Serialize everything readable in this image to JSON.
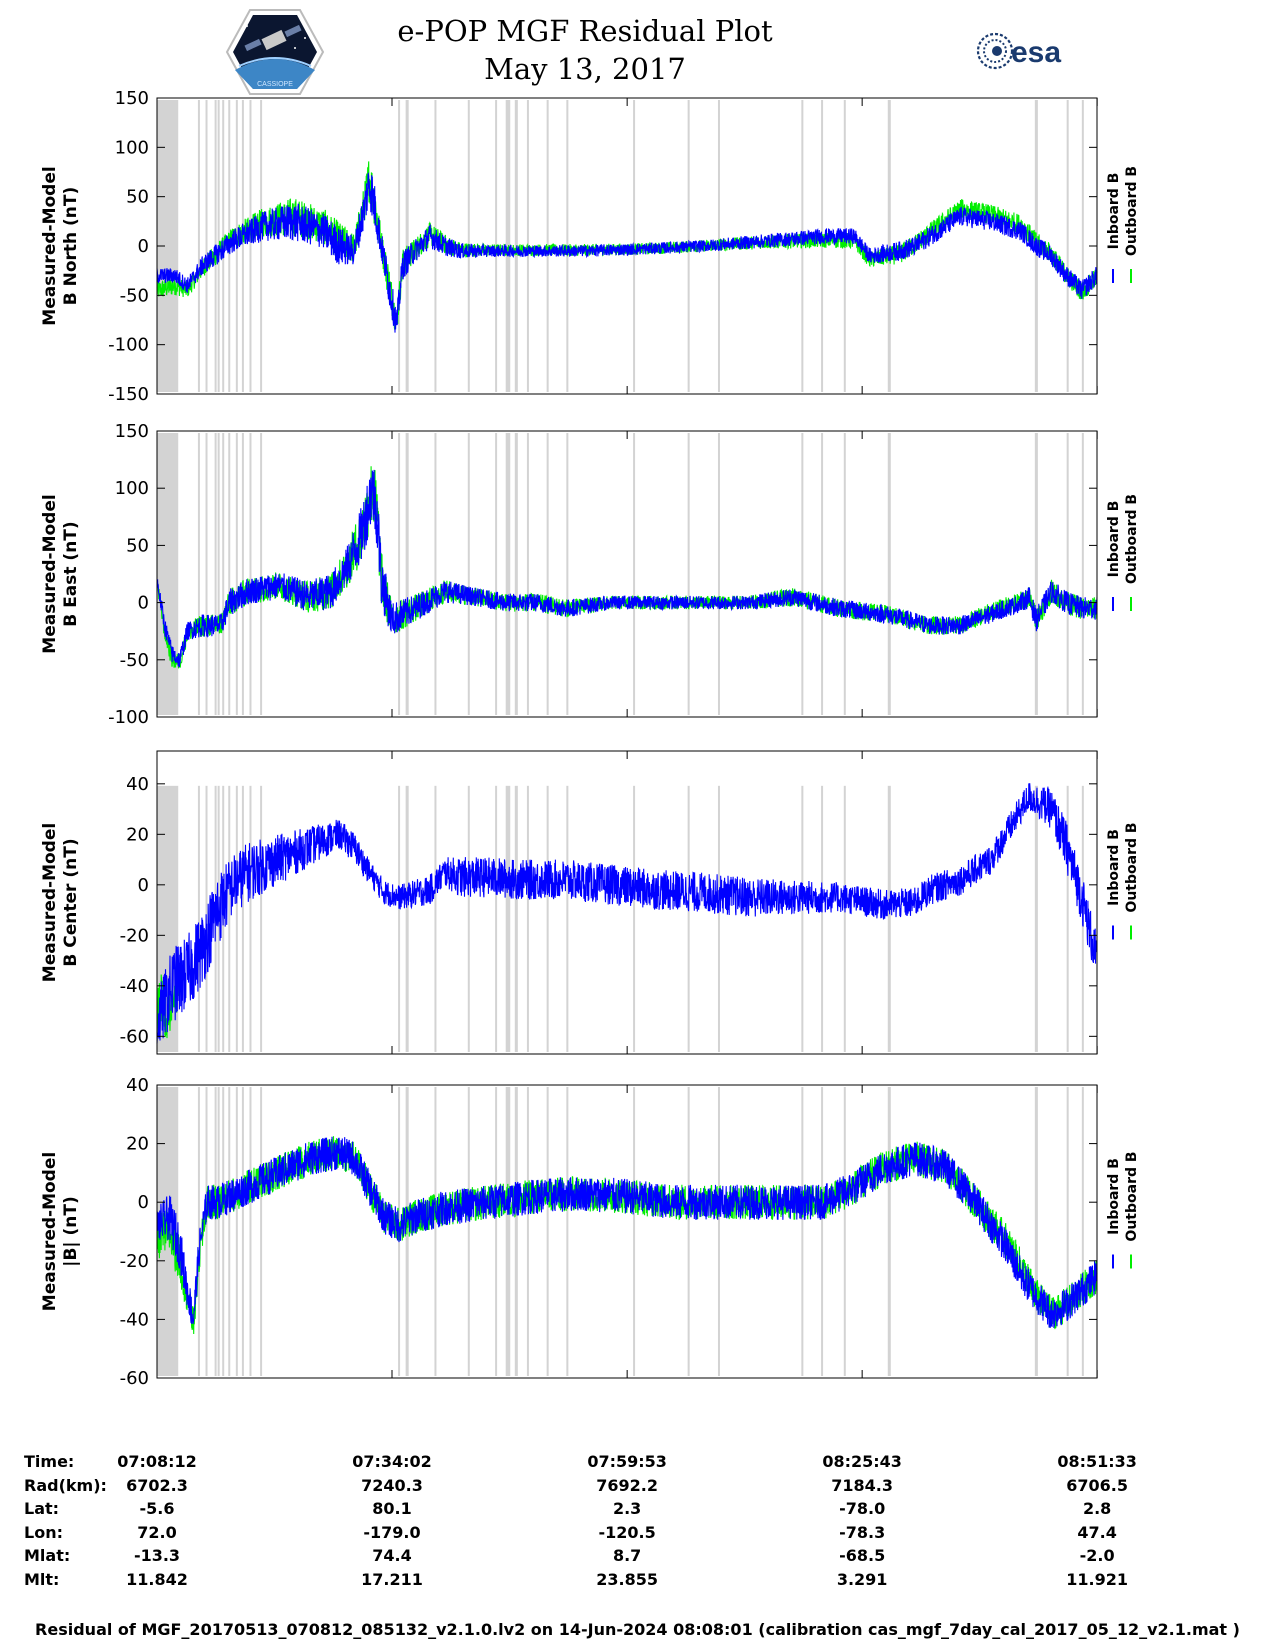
{
  "header": {
    "title_line1": "e-POP MGF Residual Plot",
    "title_line2": "May 13, 2017",
    "logo_left": "CASSIOPE",
    "logo_right": "esa"
  },
  "colors": {
    "inboard": "#0000ff",
    "outboard": "#00ee00",
    "gap": "#d3d3d3"
  },
  "chart_data": [
    {
      "type": "line",
      "ylabel": "Measured-Model\nB North (nT)",
      "ylabel_lines": [
        "Measured-Model",
        "B North (nT)"
      ],
      "ylim": [
        -150,
        150
      ],
      "yticks": [
        150,
        100,
        50,
        0,
        -50,
        -100,
        -150
      ],
      "xlim": [
        0,
        6200
      ],
      "legend": [
        "Inboard B",
        "Outboard B"
      ],
      "series": [
        {
          "name": "Inboard B",
          "key": "inboard",
          "x": [
            0,
            120,
            200,
            300,
            500,
            700,
            900,
            1100,
            1200,
            1300,
            1370,
            1400,
            1430,
            1480,
            1530,
            1580,
            1620,
            1700,
            1800,
            1900,
            2000,
            2200,
            2400,
            2800,
            3200,
            3600,
            4000,
            4400,
            4600,
            4700,
            4900,
            5000,
            5100,
            5300,
            5500,
            5700,
            5800,
            5900,
            6000,
            6100,
            6200
          ],
          "y": [
            -30,
            -30,
            -40,
            -20,
            5,
            20,
            25,
            15,
            0,
            -5,
            40,
            65,
            45,
            0,
            -40,
            -80,
            -20,
            -5,
            10,
            0,
            -5,
            -5,
            -5,
            -5,
            -3,
            0,
            5,
            10,
            10,
            -10,
            -5,
            0,
            10,
            30,
            25,
            15,
            0,
            -10,
            -30,
            -45,
            -30
          ],
          "noise": [
            8,
            8,
            8,
            10,
            12,
            15,
            20,
            18,
            20,
            15,
            20,
            25,
            25,
            15,
            20,
            15,
            15,
            12,
            12,
            10,
            8,
            6,
            6,
            6,
            6,
            6,
            7,
            8,
            8,
            8,
            10,
            10,
            10,
            10,
            10,
            10,
            10,
            10,
            10,
            10,
            10
          ]
        },
        {
          "name": "Outboard B",
          "key": "outboard",
          "x": [
            0,
            120,
            200,
            300,
            500,
            700,
            900,
            1100,
            1200,
            1300,
            1370,
            1400,
            1430,
            1480,
            1530,
            1580,
            1620,
            1700,
            1800,
            1900,
            2000,
            2200,
            2400,
            2800,
            3200,
            3600,
            4000,
            4400,
            4600,
            4700,
            4900,
            5000,
            5100,
            5300,
            5500,
            5700,
            5800,
            5900,
            6000,
            6100,
            6200
          ],
          "y": [
            -45,
            -40,
            -45,
            -22,
            8,
            24,
            30,
            20,
            5,
            -2,
            45,
            70,
            48,
            2,
            -38,
            -78,
            -18,
            -4,
            12,
            2,
            -4,
            -4,
            -4,
            -4,
            -3,
            0,
            4,
            6,
            5,
            -14,
            -8,
            2,
            14,
            38,
            32,
            22,
            4,
            -8,
            -30,
            -46,
            -32
          ],
          "noise": [
            10,
            10,
            8,
            10,
            12,
            15,
            20,
            18,
            20,
            15,
            20,
            25,
            25,
            15,
            20,
            15,
            15,
            12,
            12,
            10,
            8,
            6,
            6,
            6,
            6,
            6,
            7,
            8,
            8,
            8,
            10,
            10,
            10,
            10,
            10,
            10,
            10,
            10,
            10,
            10,
            10
          ]
        }
      ]
    },
    {
      "type": "line",
      "ylabel": "Measured-Model\nB East (nT)",
      "ylabel_lines": [
        "Measured-Model",
        "B East (nT)"
      ],
      "ylim": [
        -100,
        150
      ],
      "yticks": [
        150,
        100,
        50,
        0,
        -50,
        -100
      ],
      "xlim": [
        0,
        6200
      ],
      "legend": [
        "Inboard B",
        "Outboard B"
      ],
      "series": [
        {
          "name": "Inboard B",
          "key": "inboard",
          "x": [
            0,
            50,
            100,
            150,
            200,
            300,
            420,
            480,
            600,
            800,
            1000,
            1150,
            1250,
            1350,
            1420,
            1450,
            1480,
            1550,
            1700,
            1900,
            2100,
            2300,
            2500,
            2700,
            3000,
            3300,
            3600,
            3900,
            4200,
            4500,
            4800,
            5100,
            5300,
            5500,
            5700,
            5750,
            5800,
            5900,
            6000,
            6100,
            6200
          ],
          "y": [
            20,
            -20,
            -45,
            -50,
            -25,
            -20,
            -20,
            0,
            10,
            15,
            5,
            10,
            30,
            60,
            100,
            80,
            20,
            -15,
            -5,
            10,
            5,
            0,
            0,
            -5,
            0,
            0,
            0,
            0,
            5,
            -5,
            -10,
            -20,
            -20,
            -10,
            0,
            5,
            -15,
            10,
            0,
            -5,
            -5
          ],
          "noise": [
            6,
            8,
            8,
            8,
            8,
            10,
            10,
            12,
            12,
            12,
            14,
            16,
            18,
            25,
            30,
            30,
            25,
            15,
            12,
            10,
            8,
            8,
            8,
            8,
            6,
            6,
            6,
            6,
            8,
            8,
            8,
            8,
            8,
            8,
            8,
            10,
            10,
            10,
            10,
            10,
            10
          ]
        },
        {
          "name": "Outboard B",
          "key": "outboard",
          "x": [
            0,
            50,
            100,
            150,
            200,
            300,
            420,
            480,
            600,
            800,
            1000,
            1150,
            1250,
            1350,
            1420,
            1450,
            1480,
            1550,
            1700,
            1900,
            2100,
            2300,
            2500,
            2700,
            3000,
            3300,
            3600,
            3900,
            4200,
            4500,
            4800,
            5100,
            5300,
            5500,
            5700,
            5750,
            5800,
            5900,
            6000,
            6100,
            6200
          ],
          "y": [
            18,
            -25,
            -50,
            -52,
            -26,
            -20,
            -20,
            0,
            10,
            15,
            5,
            10,
            30,
            60,
            100,
            80,
            20,
            -15,
            -5,
            10,
            5,
            0,
            0,
            -5,
            0,
            0,
            0,
            0,
            5,
            -5,
            -10,
            -20,
            -20,
            -8,
            2,
            5,
            -15,
            10,
            0,
            -5,
            -5
          ],
          "noise": [
            6,
            8,
            8,
            8,
            8,
            10,
            10,
            12,
            12,
            12,
            14,
            16,
            18,
            25,
            30,
            30,
            25,
            15,
            12,
            10,
            8,
            8,
            8,
            8,
            6,
            6,
            6,
            6,
            8,
            8,
            8,
            8,
            8,
            8,
            8,
            10,
            10,
            10,
            10,
            10,
            10
          ]
        }
      ]
    },
    {
      "type": "line",
      "ylabel": "Measured-Model\nB Center (nT)",
      "ylabel_lines": [
        "Measured-Model",
        "B Center (nT)"
      ],
      "ylim": [
        -67,
        53
      ],
      "yticks": [
        40,
        20,
        0,
        -20,
        -40,
        -60
      ],
      "xlim": [
        0,
        6200
      ],
      "legend": [
        "Inboard B",
        "Outboard B"
      ],
      "series": [
        {
          "name": "Inboard B",
          "key": "inboard",
          "x": [
            0,
            100,
            200,
            300,
            400,
            500,
            600,
            800,
            1000,
            1200,
            1300,
            1400,
            1500,
            1600,
            1800,
            1900,
            2000,
            2200,
            2400,
            2700,
            3000,
            3300,
            3600,
            3900,
            4200,
            4500,
            4800,
            5000,
            5100,
            5300,
            5500,
            5650,
            5750,
            5900,
            6000,
            6100,
            6200
          ],
          "y": [
            -55,
            -40,
            -35,
            -25,
            -10,
            0,
            5,
            10,
            15,
            20,
            15,
            5,
            -3,
            -5,
            -2,
            5,
            3,
            3,
            2,
            2,
            0,
            -2,
            -3,
            -5,
            -5,
            -5,
            -8,
            -7,
            -2,
            2,
            10,
            25,
            35,
            30,
            15,
            -5,
            -30
          ],
          "noise": [
            12,
            15,
            15,
            15,
            15,
            12,
            12,
            10,
            8,
            6,
            6,
            5,
            5,
            5,
            6,
            6,
            8,
            8,
            8,
            8,
            8,
            8,
            8,
            8,
            7,
            6,
            6,
            6,
            6,
            6,
            6,
            6,
            6,
            8,
            10,
            10,
            10
          ]
        },
        {
          "name": "Outboard B",
          "key": "outboard",
          "x": [
            0,
            30,
            60,
            100,
            150
          ],
          "y": [
            -50,
            -45,
            -55,
            -45,
            -40
          ],
          "noise": [
            10,
            10,
            10,
            10,
            10
          ]
        }
      ]
    },
    {
      "type": "line",
      "ylabel": "Measured-Model\n|B| (nT)",
      "ylabel_lines": [
        "Measured-Model",
        "|B| (nT)"
      ],
      "ylim": [
        -60,
        40
      ],
      "yticks": [
        40,
        20,
        0,
        -20,
        -40,
        -60
      ],
      "xlim": [
        0,
        6200
      ],
      "legend": [
        "Inboard B",
        "Outboard B"
      ],
      "series": [
        {
          "name": "Inboard B",
          "key": "inboard",
          "x": [
            0,
            80,
            150,
            200,
            240,
            280,
            330,
            400,
            600,
            800,
            1000,
            1200,
            1300,
            1400,
            1500,
            1600,
            1700,
            1900,
            2200,
            2500,
            2800,
            3100,
            3400,
            3700,
            4000,
            4200,
            4400,
            4600,
            4800,
            5000,
            5200,
            5400,
            5600,
            5700,
            5800,
            5900,
            6000,
            6100,
            6200
          ],
          "y": [
            -8,
            -5,
            -15,
            -30,
            -40,
            -15,
            0,
            0,
            5,
            10,
            15,
            17,
            15,
            5,
            -5,
            -8,
            -5,
            -2,
            0,
            2,
            3,
            2,
            0,
            0,
            0,
            0,
            0,
            5,
            12,
            15,
            12,
            0,
            -15,
            -25,
            -32,
            -38,
            -35,
            -30,
            -25
          ],
          "noise": [
            6,
            8,
            8,
            6,
            6,
            6,
            6,
            6,
            6,
            6,
            6,
            6,
            6,
            6,
            6,
            6,
            6,
            6,
            6,
            6,
            6,
            6,
            6,
            6,
            6,
            6,
            6,
            6,
            6,
            6,
            6,
            6,
            6,
            6,
            6,
            6,
            6,
            6,
            6
          ]
        },
        {
          "name": "Outboard B",
          "key": "outboard",
          "x": [
            0,
            80,
            150,
            200,
            240,
            280,
            330,
            400,
            600,
            800,
            1000,
            1200,
            1300,
            1400,
            1500,
            1600,
            1700,
            1900,
            2200,
            2500,
            2800,
            3100,
            3400,
            3700,
            4000,
            4200,
            4400,
            4600,
            4800,
            5000,
            5200,
            5400,
            5600,
            5700,
            5800,
            5900,
            6000,
            6100,
            6200
          ],
          "y": [
            -12,
            -10,
            -20,
            -32,
            -42,
            -18,
            0,
            0,
            5,
            10,
            15,
            17,
            15,
            5,
            -5,
            -8,
            -5,
            -2,
            0,
            2,
            3,
            2,
            0,
            0,
            0,
            0,
            0,
            5,
            12,
            15,
            12,
            0,
            -13,
            -22,
            -32,
            -38,
            -35,
            -30,
            -25
          ],
          "noise": [
            8,
            8,
            8,
            6,
            6,
            6,
            6,
            6,
            6,
            6,
            6,
            6,
            6,
            6,
            6,
            6,
            6,
            6,
            6,
            6,
            6,
            6,
            6,
            6,
            6,
            6,
            6,
            6,
            6,
            6,
            6,
            6,
            6,
            6,
            6,
            6,
            6,
            6,
            6
          ]
        }
      ]
    }
  ],
  "data_gaps": [
    [
      0,
      140
    ],
    [
      270,
      280
    ],
    [
      320,
      330
    ],
    [
      380,
      392
    ],
    [
      400,
      410
    ],
    [
      430,
      436
    ],
    [
      470,
      478
    ],
    [
      520,
      528
    ],
    [
      560,
      572
    ],
    [
      610,
      620
    ],
    [
      680,
      686
    ],
    [
      1590,
      1600
    ],
    [
      1640,
      1660
    ],
    [
      1830,
      1840
    ],
    [
      2050,
      2060
    ],
    [
      2230,
      2240
    ],
    [
      2300,
      2330
    ],
    [
      2360,
      2380
    ],
    [
      2440,
      2450
    ],
    [
      2570,
      2580
    ],
    [
      2700,
      2710
    ],
    [
      3140,
      3146
    ],
    [
      3500,
      3510
    ],
    [
      3700,
      3712
    ],
    [
      4250,
      4260
    ],
    [
      4380,
      4390
    ],
    [
      4530,
      4540
    ],
    [
      4820,
      4840
    ],
    [
      5790,
      5810
    ],
    [
      6000,
      6006
    ],
    [
      6100,
      6110
    ]
  ],
  "x_axis": {
    "tick_values": [
      0,
      1550,
      3101,
      4651,
      6201
    ],
    "rows": [
      {
        "label": "Time:",
        "values": [
          "07:08:12",
          "07:34:02",
          "07:59:53",
          "08:25:43",
          "08:51:33"
        ]
      },
      {
        "label": "Rad(km):",
        "values": [
          "6702.3",
          "7240.3",
          "7692.2",
          "7184.3",
          "6706.5"
        ]
      },
      {
        "label": "Lat:",
        "values": [
          "-5.6",
          "80.1",
          "2.3",
          "-78.0",
          "2.8"
        ]
      },
      {
        "label": "Lon:",
        "values": [
          "72.0",
          "-179.0",
          "-120.5",
          "-78.3",
          "47.4"
        ]
      },
      {
        "label": "Mlat:",
        "values": [
          "-13.3",
          "74.4",
          "8.7",
          "-68.5",
          "-2.0"
        ]
      },
      {
        "label": "Mlt:",
        "values": [
          "11.842",
          "17.211",
          "23.855",
          "3.291",
          "11.921"
        ]
      }
    ]
  },
  "footer": "Residual of MGF_20170513_070812_085132_v2.1.0.lv2 on 14-Jun-2024 08:08:01 (calibration cas_mgf_7day_cal_2017_05_12_v2.1.mat )"
}
